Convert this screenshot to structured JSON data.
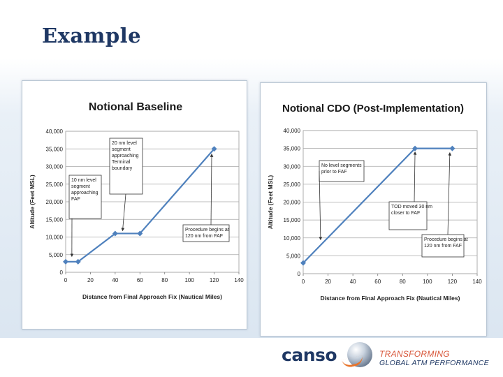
{
  "slide": {
    "title": "Example"
  },
  "footer": {
    "logo_text": "canso",
    "tagline_line1": "TRANSFORMING",
    "tagline_line2": "GLOBAL ATM PERFORMANCE"
  },
  "chart_data": [
    {
      "type": "line",
      "title": "Notional Baseline",
      "xlabel": "Distance from Final Approach Fix (Nautical Miles)",
      "ylabel": "Altitude (Feet MSL)",
      "xlim": [
        0,
        140
      ],
      "ylim": [
        0,
        40000
      ],
      "x_ticks": [
        "0",
        "20",
        "40",
        "60",
        "80",
        "100",
        "120",
        "140"
      ],
      "y_ticks": [
        "0",
        "5,000",
        "10,000",
        "15,000",
        "20,000",
        "25,000",
        "30,000",
        "35,000",
        "40,000"
      ],
      "grid": true,
      "series": [
        {
          "x": [
            0,
            10,
            40,
            60,
            120
          ],
          "y": [
            3000,
            3000,
            11000,
            11000,
            35000
          ],
          "color": "#4f81bd"
        }
      ],
      "annotations": [
        {
          "text": [
            "10 nm level",
            "segment",
            "approaching",
            "FAF"
          ]
        },
        {
          "text": [
            "20 nm level",
            "segment",
            "approaching",
            "Terminal",
            "boundary"
          ]
        },
        {
          "text": [
            "Procedure begins at",
            "120 nm from FAF"
          ]
        }
      ]
    },
    {
      "type": "line",
      "title": "Notional CDO (Post-Implementation)",
      "xlabel": "Distance from Final Approach Fix (Nautical Miles)",
      "ylabel": "Altitude (Feet MSL)",
      "xlim": [
        0,
        140
      ],
      "ylim": [
        0,
        40000
      ],
      "x_ticks": [
        "0",
        "20",
        "40",
        "60",
        "80",
        "100",
        "120",
        "140"
      ],
      "y_ticks": [
        "0",
        "5,000",
        "10,000",
        "15,000",
        "20,000",
        "25,000",
        "30,000",
        "35,000",
        "40,000"
      ],
      "grid": true,
      "series": [
        {
          "x": [
            0,
            90,
            120
          ],
          "y": [
            3000,
            35000,
            35000
          ],
          "color": "#4f81bd"
        }
      ],
      "annotations": [
        {
          "text": [
            "No level segments",
            "prior to FAF"
          ]
        },
        {
          "text": [
            "TOD moved 30 nm",
            "closer to FAF"
          ]
        },
        {
          "text": [
            "Procedure begins at",
            "120 nm from FAF"
          ]
        }
      ]
    }
  ]
}
